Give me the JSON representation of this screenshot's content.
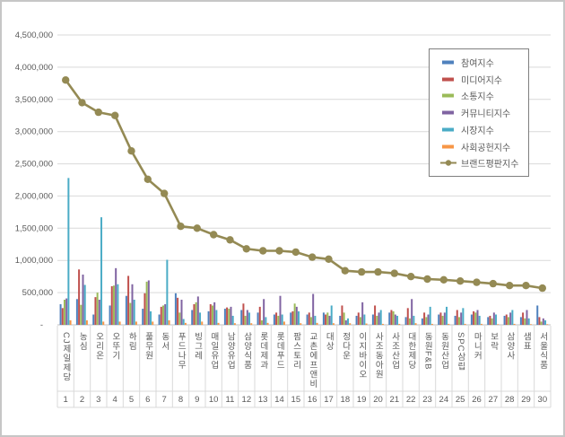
{
  "chart_data": {
    "type": "bar+line",
    "title": "",
    "xlabel": "",
    "ylabel": "",
    "ylim": [
      0,
      4500000
    ],
    "grid": true,
    "legend_position": "upper-right-inset",
    "y_ticks": [
      "4,500,000",
      "4,000,000",
      "3,500,000",
      "3,000,000",
      "2,500,000",
      "2,000,000",
      "1,500,000",
      "1,000,000",
      "500,000",
      "-"
    ],
    "categories": [
      "CJ제일제당",
      "농심",
      "오리온",
      "오뚜기",
      "하림",
      "풀무원",
      "동서",
      "푸드나무",
      "빙그레",
      "매일유업",
      "남양유업",
      "삼양식품",
      "롯데제과",
      "롯데푸드",
      "팜스토리",
      "교촌에프앤비",
      "대상",
      "정다운",
      "이지바이오",
      "사조동아원",
      "사조산업",
      "대한제당",
      "동원F&B",
      "동원산업",
      "SPC삼립",
      "마니커",
      "보락",
      "삼양사",
      "샘표",
      "서울식품"
    ],
    "ranks": [
      "1",
      "2",
      "3",
      "4",
      "5",
      "6",
      "7",
      "8",
      "9",
      "10",
      "11",
      "12",
      "13",
      "14",
      "15",
      "16",
      "17",
      "18",
      "19",
      "20",
      "21",
      "22",
      "23",
      "24",
      "25",
      "26",
      "27",
      "28",
      "29",
      "30"
    ],
    "series": [
      {
        "id": "participation-index",
        "name": "참여지수",
        "type": "bar",
        "color": "#4F81BD",
        "values": [
          320000,
          400000,
          160000,
          300000,
          450000,
          250000,
          160000,
          490000,
          230000,
          210000,
          250000,
          230000,
          190000,
          160000,
          190000,
          160000,
          190000,
          140000,
          140000,
          160000,
          190000,
          120000,
          100000,
          160000,
          140000,
          160000,
          120000,
          140000,
          120000,
          300000
        ]
      },
      {
        "id": "media-index",
        "name": "미디어지수",
        "type": "bar",
        "color": "#C0504D",
        "values": [
          260000,
          860000,
          430000,
          600000,
          760000,
          490000,
          280000,
          420000,
          320000,
          320000,
          270000,
          330000,
          280000,
          190000,
          210000,
          190000,
          160000,
          300000,
          190000,
          300000,
          230000,
          260000,
          190000,
          190000,
          230000,
          210000,
          140000,
          160000,
          190000,
          120000
        ]
      },
      {
        "id": "communication-index",
        "name": "소통지수",
        "type": "bar",
        "color": "#9BBB59",
        "values": [
          390000,
          310000,
          500000,
          610000,
          340000,
          670000,
          300000,
          190000,
          350000,
          300000,
          250000,
          140000,
          70000,
          140000,
          330000,
          120000,
          190000,
          190000,
          120000,
          140000,
          210000,
          100000,
          120000,
          140000,
          120000,
          190000,
          100000,
          120000,
          100000,
          50000
        ]
      },
      {
        "id": "community-index",
        "name": "커뮤니티지수",
        "type": "bar",
        "color": "#8064A2",
        "values": [
          410000,
          780000,
          390000,
          880000,
          630000,
          690000,
          320000,
          390000,
          440000,
          350000,
          280000,
          230000,
          400000,
          450000,
          280000,
          480000,
          140000,
          70000,
          350000,
          190000,
          160000,
          400000,
          160000,
          190000,
          190000,
          230000,
          190000,
          190000,
          230000,
          100000
        ]
      },
      {
        "id": "market-index",
        "name": "시장지수",
        "type": "bar",
        "color": "#4BACC6",
        "values": [
          2280000,
          620000,
          1670000,
          630000,
          390000,
          210000,
          1010000,
          90000,
          190000,
          230000,
          140000,
          190000,
          120000,
          160000,
          210000,
          140000,
          300000,
          100000,
          160000,
          230000,
          140000,
          140000,
          280000,
          280000,
          260000,
          140000,
          160000,
          230000,
          100000,
          70000
        ]
      },
      {
        "id": "social-contribution-index",
        "name": "사회공헌지수",
        "type": "bar",
        "color": "#F79646",
        "values": [
          70000,
          70000,
          50000,
          50000,
          50000,
          50000,
          70000,
          30000,
          50000,
          30000,
          25000,
          25000,
          30000,
          50000,
          25000,
          30000,
          25000,
          25000,
          20000,
          15000,
          15000,
          25000,
          15000,
          15000,
          15000,
          15000,
          10000,
          15000,
          10000,
          10000
        ]
      },
      {
        "id": "brand-reputation-index",
        "name": "브랜드평판지수",
        "type": "line",
        "color": "#948A54",
        "values": [
          3800000,
          3450000,
          3300000,
          3250000,
          2700000,
          2260000,
          2040000,
          1530000,
          1500000,
          1400000,
          1320000,
          1180000,
          1150000,
          1150000,
          1130000,
          1050000,
          1020000,
          840000,
          820000,
          820000,
          800000,
          750000,
          710000,
          700000,
          680000,
          660000,
          640000,
          610000,
          610000,
          570000
        ]
      }
    ]
  }
}
